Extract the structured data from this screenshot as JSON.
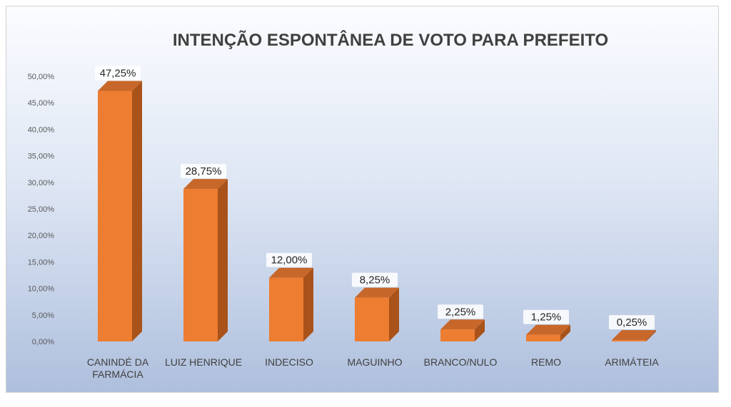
{
  "chart_data": {
    "type": "bar",
    "title": "INTENÇÃO ESPONTÂNEA DE VOTO PARA PREFEITO",
    "xlabel": "",
    "ylabel": "",
    "ylim": [
      0,
      50
    ],
    "yticks": [
      "0,00%",
      "5,00%",
      "10,00%",
      "15,00%",
      "20,00%",
      "25,00%",
      "30,00%",
      "35,00%",
      "40,00%",
      "45,00%",
      "50,00%"
    ],
    "categories": [
      [
        "CANINDÉ DA",
        "FARMÁCIA"
      ],
      [
        "LUIZ HENRIQUE"
      ],
      [
        "INDECISO"
      ],
      [
        "MAGUINHO"
      ],
      [
        "BRANCO/NULO"
      ],
      [
        "REMO"
      ],
      [
        "ARIMÁTEIA"
      ]
    ],
    "values": [
      47.25,
      28.75,
      12.0,
      8.25,
      2.25,
      1.25,
      0.25
    ],
    "data_labels": [
      "47,25%",
      "28,75%",
      "12,00%",
      "8,25%",
      "2,25%",
      "1,25%",
      "0,25%"
    ],
    "grid": false,
    "legend": "none",
    "colors": {
      "bar_front": "#ed7d31",
      "bar_side": "#a9521a",
      "bar_top": "#c8672a",
      "label_bg": "#ffffff"
    }
  }
}
